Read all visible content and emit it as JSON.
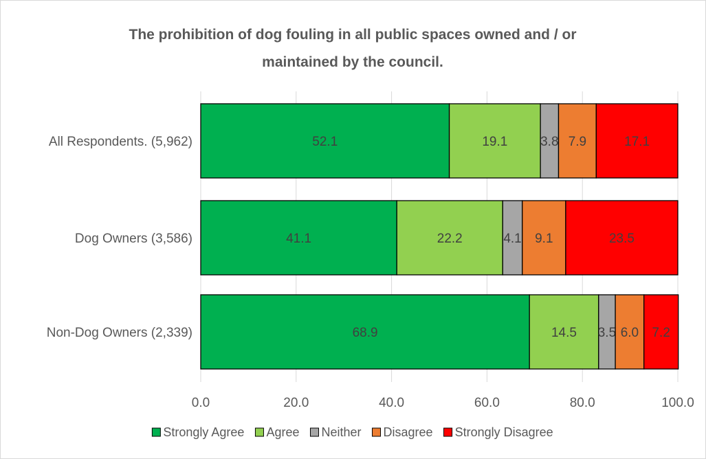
{
  "chart_data": {
    "type": "bar",
    "orientation": "horizontal",
    "stacked": true,
    "title": "The prohibition of dog fouling in all public spaces owned and / or maintained by the council.",
    "title_lines": [
      "The prohibition of dog fouling in all public spaces owned and / or",
      "maintained by the council."
    ],
    "categories": [
      "All Respondents. (5,962)",
      "Dog Owners (3,586)",
      "Non-Dog Owners (2,339)"
    ],
    "series": [
      {
        "name": "Strongly Agree",
        "color": "#00b050",
        "values": [
          52.1,
          41.1,
          68.9
        ],
        "labels": [
          "52.1",
          "41.1",
          "68.9"
        ]
      },
      {
        "name": "Agree",
        "color": "#92d050",
        "values": [
          19.1,
          22.2,
          14.5
        ],
        "labels": [
          "19.1",
          "22.2",
          "14.5"
        ]
      },
      {
        "name": "Neither",
        "color": "#a6a6a6",
        "values": [
          3.8,
          4.1,
          3.5
        ],
        "labels": [
          "3.8",
          "4.1",
          "3.5"
        ]
      },
      {
        "name": "Disagree",
        "color": "#ed7d31",
        "values": [
          7.9,
          9.1,
          6.0
        ],
        "labels": [
          "7.9",
          "9.1",
          "6.0"
        ]
      },
      {
        "name": "Strongly Disagree",
        "color": "#ff0000",
        "values": [
          17.1,
          23.5,
          7.2
        ],
        "labels": [
          "17.1",
          "23.5",
          "7.2"
        ]
      }
    ],
    "x_ticks": [
      "0.0",
      "20.0",
      "40.0",
      "60.0",
      "80.0",
      "100.0"
    ],
    "xlim": [
      0,
      100
    ],
    "grid": true,
    "legend_position": "bottom"
  }
}
